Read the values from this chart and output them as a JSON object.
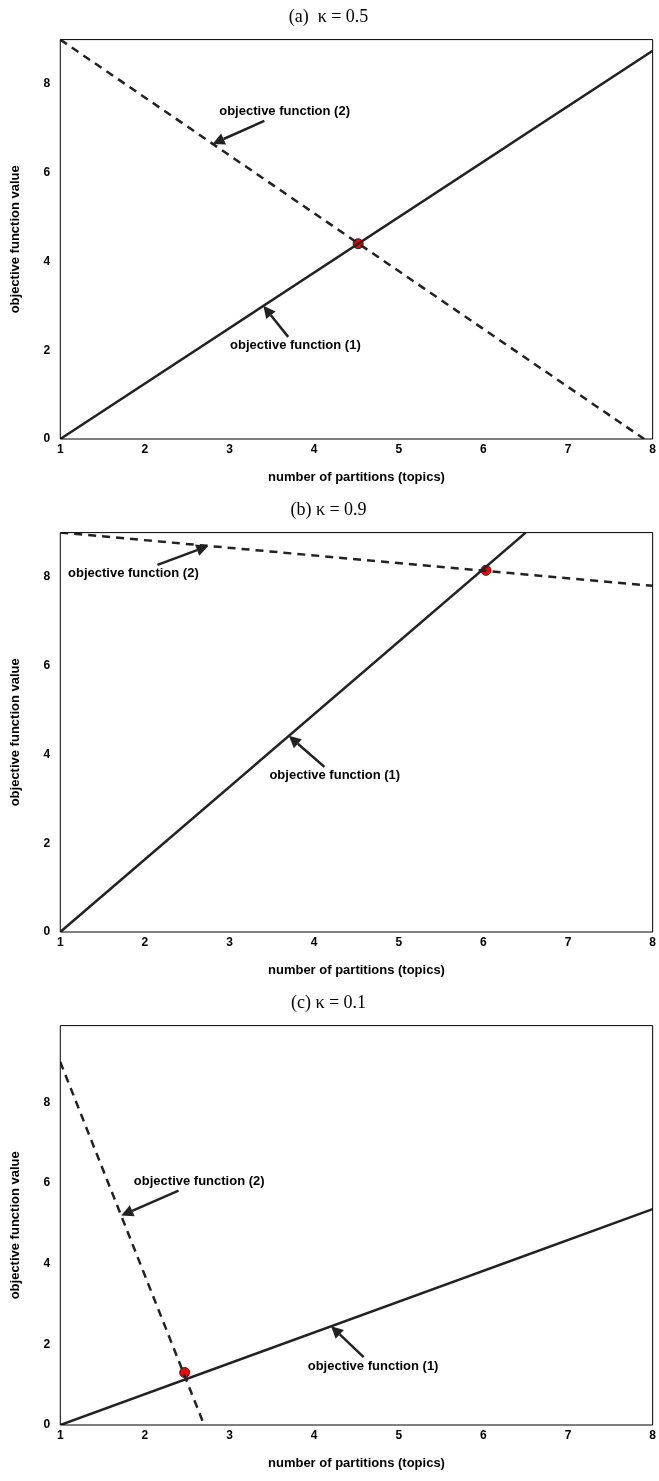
{
  "chart_data": [
    {
      "type": "line",
      "title": "(a)  κ = 0.5",
      "xlabel": "number of partitions (topics)",
      "ylabel": "objective function value",
      "xlim": [
        1,
        8
      ],
      "ylim": [
        0,
        9
      ],
      "xticks": [
        1,
        2,
        3,
        4,
        5,
        6,
        7,
        8
      ],
      "yticks": [
        0,
        2,
        4,
        6,
        8
      ],
      "grid": false,
      "legend": false,
      "series": [
        {
          "type": "line",
          "x": [
            1,
            8
          ],
          "values": [
            0,
            8.75
          ],
          "color": "#222222",
          "line_style": "solid",
          "marker": "none"
        },
        {
          "type": "line",
          "x": [
            1,
            7.9
          ],
          "values": [
            9,
            0
          ],
          "color": "#222222",
          "line_style": "dashed",
          "marker": "none"
        },
        {
          "type": "scatter",
          "x": [
            4.52
          ],
          "values": [
            4.4
          ],
          "color": "#ff0000",
          "marker": "circle"
        }
      ],
      "annotations": [
        {
          "text": "objective function (2)",
          "x": 2.8,
          "y": 6.65
        },
        {
          "text": "objective function (1)",
          "x": 3.4,
          "y": 3.0
        }
      ]
    },
    {
      "type": "line",
      "title": "(b) κ = 0.9",
      "xlabel": "number of partitions (topics)",
      "ylabel": "objective function value",
      "xlim": [
        1,
        8
      ],
      "ylim": [
        0,
        9
      ],
      "xticks": [
        1,
        2,
        3,
        4,
        5,
        6,
        7,
        8
      ],
      "yticks": [
        0,
        2,
        4,
        6,
        8
      ],
      "grid": false,
      "legend": false,
      "series": [
        {
          "type": "line",
          "x": [
            1,
            6.5
          ],
          "values": [
            0,
            9
          ],
          "color": "#222222",
          "line_style": "solid",
          "marker": "none"
        },
        {
          "type": "line",
          "x": [
            1,
            8
          ],
          "values": [
            9,
            7.8
          ],
          "color": "#222222",
          "line_style": "dashed",
          "marker": "none"
        },
        {
          "type": "scatter",
          "x": [
            6.03
          ],
          "values": [
            8.15
          ],
          "color": "#ff0000",
          "marker": "circle"
        }
      ],
      "annotations": [
        {
          "text": "objective function (2)",
          "x": 2.75,
          "y": 8.7
        },
        {
          "text": "objective function (1)",
          "x": 3.7,
          "y": 4.42
        }
      ]
    },
    {
      "type": "line",
      "title": "(c) κ = 0.1",
      "xlabel": "number of partitions (topics)",
      "ylabel": "objective function value",
      "xlim": [
        1,
        8
      ],
      "ylim": [
        0,
        9.9
      ],
      "xticks": [
        1,
        2,
        3,
        4,
        5,
        6,
        7,
        8
      ],
      "yticks": [
        0,
        2,
        4,
        6,
        8
      ],
      "grid": false,
      "legend": false,
      "series": [
        {
          "type": "line",
          "x": [
            1,
            8
          ],
          "values": [
            0,
            5.35
          ],
          "color": "#222222",
          "line_style": "solid",
          "marker": "none"
        },
        {
          "type": "line",
          "x": [
            1,
            2.7
          ],
          "values": [
            9,
            0
          ],
          "color": "#222222",
          "line_style": "dashed",
          "marker": "none"
        },
        {
          "type": "scatter",
          "x": [
            2.47
          ],
          "values": [
            1.3
          ],
          "color": "#ff0000",
          "marker": "circle"
        }
      ],
      "annotations": [
        {
          "text": "objective function (2)",
          "x": 1.72,
          "y": 5.19
        },
        {
          "text": "objective function (1)",
          "x": 4.2,
          "y": 2.45
        }
      ]
    }
  ]
}
